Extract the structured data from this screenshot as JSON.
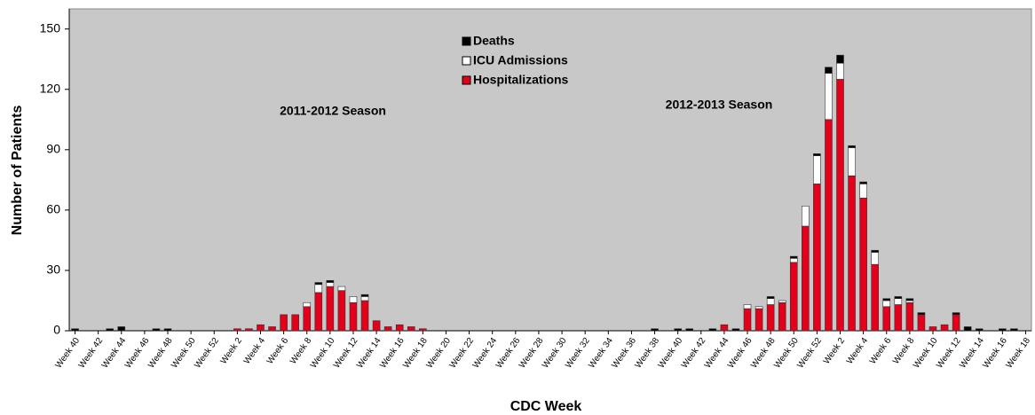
{
  "chart_data": {
    "type": "stacked-bar",
    "y_label": "Number of Patients",
    "x_label": "CDC Week",
    "annotations": [
      {
        "text": "2011-2012 Season"
      },
      {
        "text": "2012-2013 Season"
      }
    ],
    "categories": [
      "Week 40",
      null,
      "Week 42",
      null,
      "Week 44",
      null,
      "Week 46",
      null,
      "Week 48",
      null,
      "Week 50",
      null,
      "Week 52",
      null,
      "Week 2",
      null,
      "Week 4",
      null,
      "Week 6",
      null,
      "Week 8",
      null,
      "Week 10",
      null,
      "Week 12",
      null,
      "Week 14",
      null,
      "Week 16",
      null,
      "Week 18",
      null,
      "Week 20",
      null,
      "Week 22",
      null,
      "Week 24",
      null,
      "Week 26",
      null,
      "Week 28",
      null,
      "Week 30",
      null,
      "Week 32",
      null,
      "Week 34",
      null,
      "Week 36",
      null,
      "Week 38",
      null,
      "Week 40",
      null,
      "Week 42",
      null,
      "Week 44",
      null,
      "Week 46",
      null,
      "Week 48",
      null,
      "Week 50",
      null,
      "Week 52",
      null,
      "Week 2",
      null,
      "Week 4",
      null,
      "Week 6",
      null,
      "Week 8",
      null,
      "Week 10",
      null,
      "Week 12",
      null,
      "Week 14",
      null,
      "Week 16",
      null,
      "Week 18"
    ],
    "series": [
      {
        "name": "Hospitalizations",
        "color": "#e2001a",
        "values": [
          0,
          0,
          0,
          0,
          0,
          0,
          0,
          0,
          0,
          0,
          0,
          0,
          0,
          0,
          1,
          1,
          3,
          2,
          8,
          8,
          12,
          19,
          22,
          20,
          14,
          15,
          5,
          2,
          3,
          2,
          1,
          0,
          0,
          0,
          0,
          0,
          0,
          0,
          0,
          0,
          0,
          0,
          0,
          0,
          0,
          0,
          0,
          0,
          0,
          0,
          0,
          0,
          0,
          0,
          0,
          0,
          3,
          0,
          11,
          11,
          13,
          14,
          34,
          52,
          73,
          105,
          125,
          77,
          66,
          33,
          12,
          13,
          14,
          8,
          2,
          3,
          8,
          0,
          0,
          0,
          0,
          0,
          0
        ]
      },
      {
        "name": "ICU Admissions",
        "color": "#ffffff",
        "values": [
          0,
          0,
          0,
          0,
          0,
          0,
          0,
          0,
          0,
          0,
          0,
          0,
          0,
          0,
          0,
          0,
          0,
          0,
          0,
          0,
          2,
          4,
          2,
          2,
          3,
          2,
          0,
          0,
          0,
          0,
          0,
          0,
          0,
          0,
          0,
          0,
          0,
          0,
          0,
          0,
          0,
          0,
          0,
          0,
          0,
          0,
          0,
          0,
          0,
          0,
          0,
          0,
          0,
          0,
          0,
          0,
          0,
          0,
          2,
          1,
          3,
          1,
          2,
          10,
          14,
          23,
          8,
          14,
          7,
          6,
          3,
          3,
          1,
          0,
          0,
          0,
          0,
          0,
          0,
          0,
          0,
          0,
          0
        ]
      },
      {
        "name": "Deaths",
        "color": "#000000",
        "values": [
          1,
          0,
          0,
          1,
          2,
          0,
          0,
          1,
          1,
          0,
          0,
          0,
          0,
          0,
          0,
          0,
          0,
          0,
          0,
          0,
          0,
          1,
          1,
          0,
          0,
          1,
          0,
          0,
          0,
          0,
          0,
          0,
          0,
          0,
          0,
          0,
          0,
          0,
          0,
          0,
          0,
          0,
          0,
          0,
          0,
          0,
          0,
          0,
          0,
          0,
          1,
          0,
          1,
          1,
          0,
          1,
          0,
          1,
          0,
          0,
          1,
          0,
          1,
          0,
          1,
          3,
          4,
          1,
          1,
          1,
          1,
          1,
          1,
          1,
          0,
          0,
          1,
          2,
          1,
          0,
          1,
          1,
          0
        ]
      }
    ],
    "ylim": [
      0,
      160
    ],
    "yticks": [
      0,
      30,
      60,
      90,
      120,
      150
    ],
    "grid": false,
    "plot_background": "#c8c8c8",
    "legend": "top-center"
  }
}
